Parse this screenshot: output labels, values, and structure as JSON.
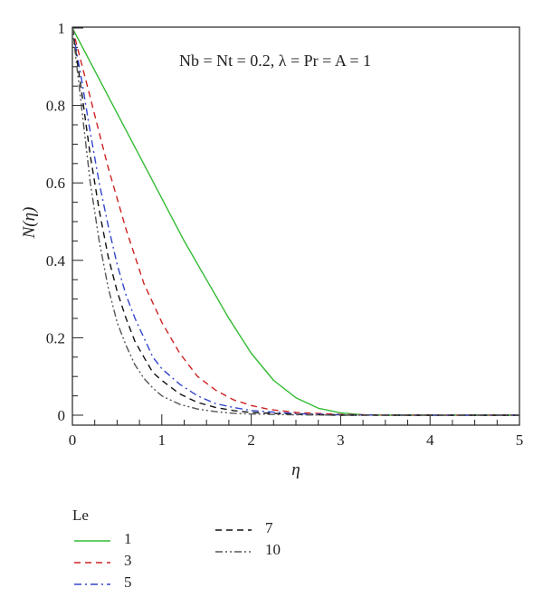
{
  "chart_data": {
    "type": "line",
    "title": "",
    "annotation": "Nb = Nt = 0.2, λ = Pr = A = 1",
    "xlabel": "η",
    "ylabel": "N(η)",
    "xlim": [
      0,
      5
    ],
    "ylim": [
      0,
      1
    ],
    "xticks": [
      "0",
      "1",
      "2",
      "3",
      "4",
      "5"
    ],
    "yticks": [
      "0",
      "0.2",
      "0.4",
      "0.6",
      "0.8",
      "1"
    ],
    "grid": false,
    "legend_title": "Le",
    "legend_position": "below",
    "series": [
      {
        "name": "1",
        "color": "#33bb33",
        "dash": "solid",
        "x": [
          0,
          0.25,
          0.5,
          0.75,
          1,
          1.25,
          1.5,
          1.75,
          2,
          2.25,
          2.5,
          2.75,
          3,
          3.25,
          3.5,
          4,
          4.5,
          5
        ],
        "y": [
          1,
          0.89,
          0.78,
          0.67,
          0.56,
          0.45,
          0.35,
          0.25,
          0.16,
          0.09,
          0.045,
          0.018,
          0.006,
          0.001,
          0,
          0,
          0,
          0
        ]
      },
      {
        "name": "3",
        "color": "#cc2222",
        "dash": "dashed",
        "x": [
          0,
          0.1,
          0.2,
          0.3,
          0.4,
          0.5,
          0.6,
          0.7,
          0.8,
          0.9,
          1,
          1.2,
          1.4,
          1.6,
          1.8,
          2,
          2.2,
          2.5,
          3,
          3.5,
          4,
          5
        ],
        "y": [
          1,
          0.91,
          0.82,
          0.73,
          0.64,
          0.56,
          0.48,
          0.41,
          0.34,
          0.29,
          0.24,
          0.16,
          0.1,
          0.065,
          0.04,
          0.025,
          0.015,
          0.007,
          0.002,
          0,
          0,
          0
        ]
      },
      {
        "name": "5",
        "color": "#3344cc",
        "dash": "dash-dot",
        "x": [
          0,
          0.1,
          0.2,
          0.3,
          0.4,
          0.5,
          0.6,
          0.7,
          0.8,
          0.9,
          1,
          1.2,
          1.4,
          1.6,
          1.8,
          2,
          2.5,
          3,
          4,
          5
        ],
        "y": [
          1,
          0.87,
          0.73,
          0.6,
          0.49,
          0.39,
          0.31,
          0.25,
          0.2,
          0.15,
          0.12,
          0.08,
          0.05,
          0.03,
          0.02,
          0.012,
          0.004,
          0.001,
          0,
          0
        ]
      },
      {
        "name": "7",
        "color": "#111111",
        "dash": "dashed",
        "x": [
          0,
          0.1,
          0.2,
          0.3,
          0.4,
          0.5,
          0.6,
          0.7,
          0.8,
          0.9,
          1,
          1.2,
          1.4,
          1.6,
          1.8,
          2,
          2.5,
          3,
          4,
          5
        ],
        "y": [
          1,
          0.84,
          0.67,
          0.53,
          0.41,
          0.32,
          0.25,
          0.19,
          0.15,
          0.11,
          0.09,
          0.055,
          0.033,
          0.02,
          0.012,
          0.007,
          0.002,
          0,
          0,
          0
        ]
      },
      {
        "name": "10",
        "color": "#555555",
        "dash": "dash-dot-dot",
        "x": [
          0,
          0.1,
          0.2,
          0.3,
          0.4,
          0.5,
          0.6,
          0.7,
          0.8,
          0.9,
          1,
          1.2,
          1.4,
          1.6,
          1.8,
          2,
          2.5,
          3,
          4,
          5
        ],
        "y": [
          1,
          0.8,
          0.6,
          0.45,
          0.33,
          0.24,
          0.18,
          0.13,
          0.095,
          0.07,
          0.05,
          0.028,
          0.016,
          0.009,
          0.005,
          0.003,
          0.001,
          0,
          0,
          0
        ]
      }
    ]
  }
}
